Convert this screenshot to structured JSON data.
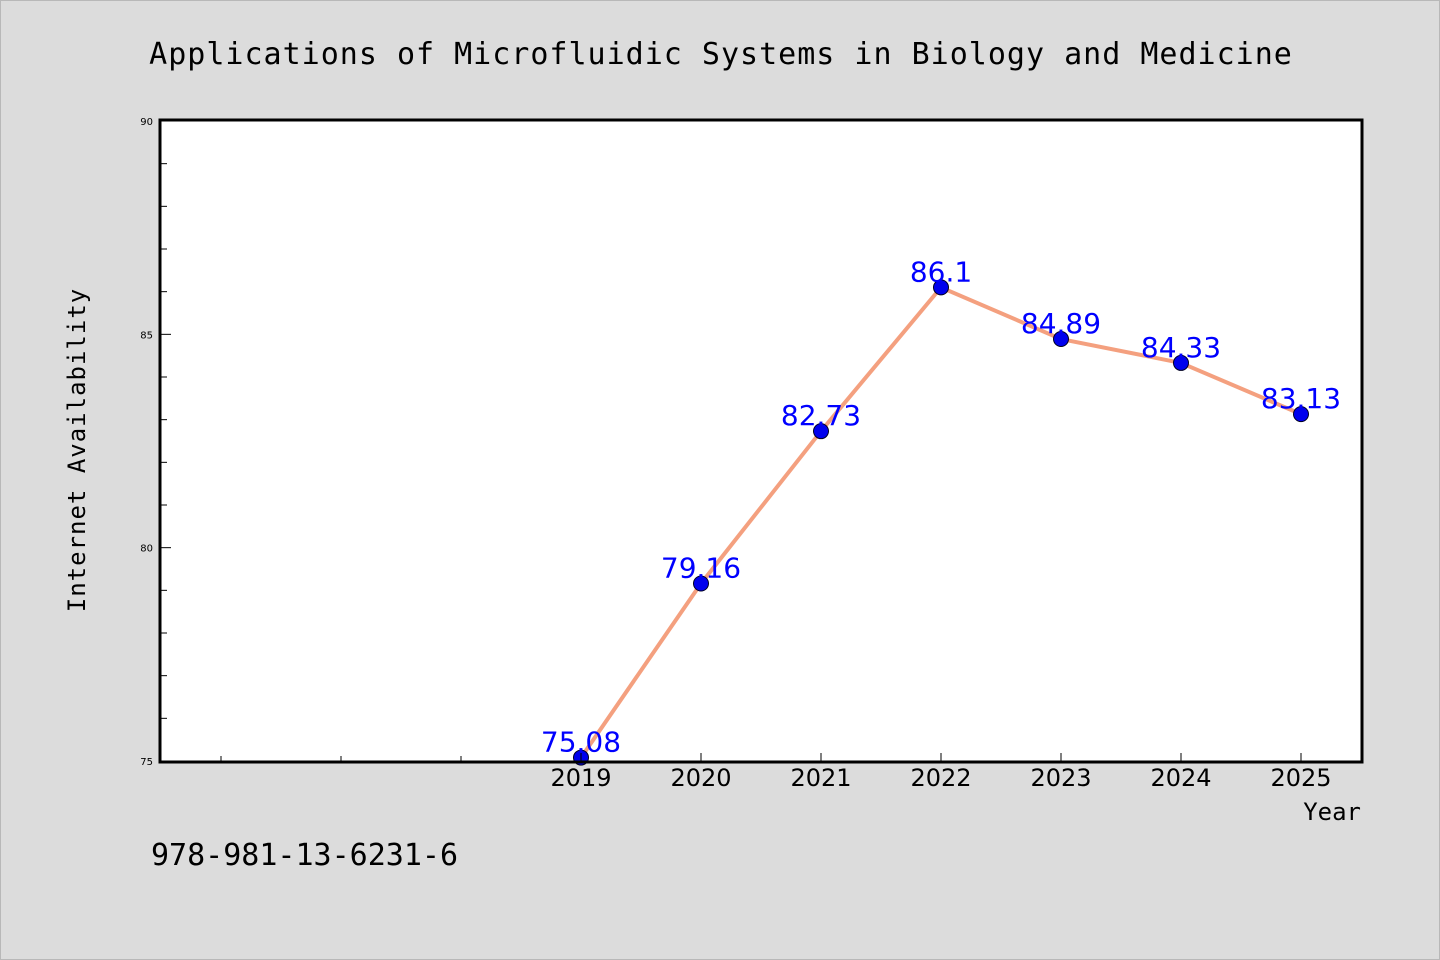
{
  "chart_data": {
    "type": "line",
    "title": "Applications of Microfluidic Systems in Biology and Medicine",
    "xlabel": "Year",
    "ylabel": "Internet Availability",
    "categories": [
      "2019",
      "2020",
      "2021",
      "2022",
      "2023",
      "2024",
      "2025"
    ],
    "series": [
      {
        "values": [
          75.08,
          79.16,
          82.73,
          86.1,
          84.89,
          84.33,
          83.13
        ],
        "data_labels": [
          "75.08",
          "79.16",
          "82.73",
          "86.1",
          "84.89",
          "84.33",
          "83.13"
        ]
      }
    ],
    "ylim": [
      75,
      90
    ],
    "y_ticks": [
      "75",
      "80",
      "85",
      "90"
    ],
    "grid": false,
    "legend": "none",
    "colors": {
      "line": "#f4a07f",
      "marker": "#0000ee",
      "data_label": "#0000ff",
      "background": "#dcdcdc",
      "plot_area": "#ffffff"
    }
  },
  "footer": {
    "isbn": "978-981-13-6231-6"
  }
}
